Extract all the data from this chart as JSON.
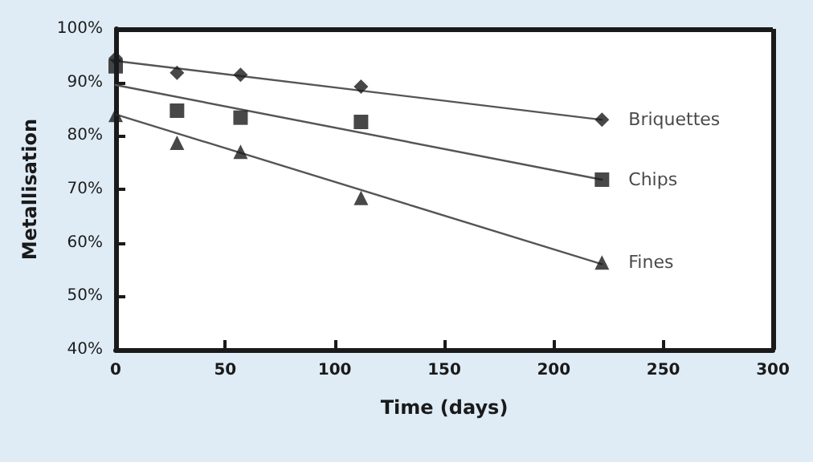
{
  "chart_data": {
    "type": "scatter",
    "xlabel": "Time (days)",
    "ylabel": "Metallisation",
    "x": [
      0,
      28,
      57,
      112,
      222
    ],
    "series": [
      {
        "name": "Briquettes",
        "marker": "diamond",
        "color": "#1a1a1a",
        "values": [
          94.5,
          91.8,
          91.4,
          89.2,
          83
        ]
      },
      {
        "name": "Chips",
        "marker": "square",
        "color": "#1a1a1a",
        "values": [
          93,
          84.7,
          83.4,
          82.6,
          71.8
        ]
      },
      {
        "name": "Fines",
        "marker": "triangle",
        "color": "#1a1a1a",
        "values": [
          83.9,
          78.7,
          77,
          68.4,
          56.3
        ]
      },
      {
        "type": "line",
        "color": "#555555",
        "marker": "none",
        "line_style": "solid",
        "values": [
          94,
          null,
          null,
          null,
          83
        ]
      },
      {
        "type": "line",
        "color": "#555555",
        "marker": "none",
        "line_style": "solid",
        "values": [
          89.5,
          null,
          null,
          null,
          71.8
        ]
      },
      {
        "type": "line",
        "color": "#555555",
        "marker": "none",
        "line_style": "solid",
        "values": [
          84,
          null,
          null,
          null,
          56
        ]
      }
    ],
    "xlim": [
      0,
      300
    ],
    "xticks": [
      0,
      50,
      100,
      150,
      200,
      250,
      300
    ],
    "ylim": [
      40,
      100
    ],
    "yticks": [
      {
        "value": 40,
        "label": "40%"
      },
      {
        "value": 50,
        "label": "50%"
      },
      {
        "value": 60,
        "label": "60%"
      },
      {
        "value": 70,
        "label": "70%"
      },
      {
        "value": 80,
        "label": "80%"
      },
      {
        "value": 90,
        "label": "90%"
      },
      {
        "value": 100,
        "label": "100%"
      }
    ],
    "grid": false,
    "legend": false
  }
}
